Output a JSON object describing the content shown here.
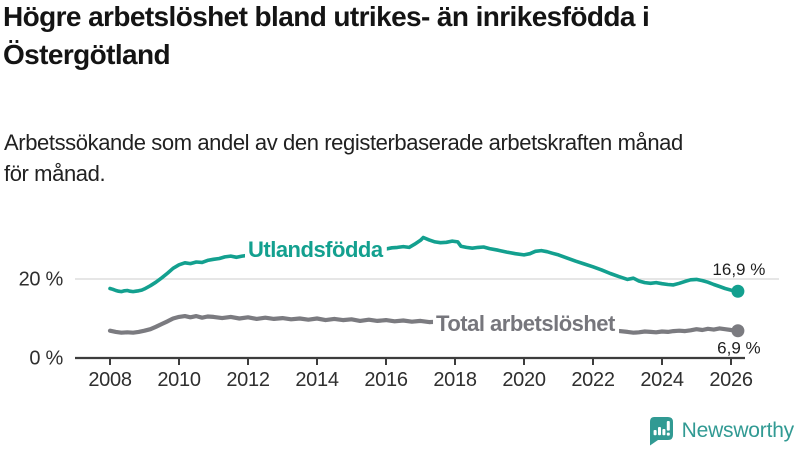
{
  "header": {
    "title_lines": [
      "Högre arbetslöshet bland utrikes- än inrikesfödda i",
      "Östergötland"
    ],
    "subtitle_lines": [
      "Arbetssökande som andel av den registerbaserade arbetskraften månad",
      "för månad."
    ]
  },
  "footer": {
    "brand": "Newsworthy"
  },
  "colors": {
    "accent_teal": "#13a08f",
    "series_gray": "#7b7b80",
    "series_gray_label": "#76767c",
    "grid": "#d8d8d8",
    "axis": "#3d3d3d",
    "axis_text": "#2f2f2f",
    "logo_teal": "#319a93"
  },
  "chart_data": {
    "type": "line",
    "title": "Högre arbetslöshet bland utrikes- än inrikesfödda i Östergötland",
    "subtitle": "Arbetssökande som andel av den registerbaserade arbetskraften månad för månad.",
    "unit": "%",
    "xlim": [
      2008,
      2026.35
    ],
    "ylim": [
      0,
      34
    ],
    "grid": "horizontal-only",
    "legend_position": "inline-labels",
    "x_ticks": [
      2008,
      2010,
      2012,
      2014,
      2016,
      2018,
      2020,
      2022,
      2024,
      2026
    ],
    "y_gridlines": [
      {
        "value": 20,
        "label": "20 %"
      },
      {
        "value": 0,
        "label": "0 %"
      }
    ],
    "series": [
      {
        "name": "Utlandsfödda",
        "color": "#13a08f",
        "end_value": 16.9,
        "end_label": "16,9 %",
        "end_label_position": "above",
        "inline_label": {
          "text": "Utlandsfödda",
          "x": 2012.0,
          "baseline_value": 25.6
        },
        "points": [
          [
            2008.0,
            17.6
          ],
          [
            2008.08,
            17.4
          ],
          [
            2008.17,
            17.1
          ],
          [
            2008.25,
            16.9
          ],
          [
            2008.33,
            16.8
          ],
          [
            2008.42,
            17.0
          ],
          [
            2008.5,
            17.1
          ],
          [
            2008.58,
            16.9
          ],
          [
            2008.67,
            16.8
          ],
          [
            2008.75,
            16.9
          ],
          [
            2008.83,
            17.0
          ],
          [
            2008.92,
            17.2
          ],
          [
            2009.0,
            17.5
          ],
          [
            2009.17,
            18.3
          ],
          [
            2009.33,
            19.2
          ],
          [
            2009.5,
            20.3
          ],
          [
            2009.67,
            21.5
          ],
          [
            2009.83,
            22.7
          ],
          [
            2010.0,
            23.6
          ],
          [
            2010.17,
            24.1
          ],
          [
            2010.33,
            23.9
          ],
          [
            2010.5,
            24.3
          ],
          [
            2010.67,
            24.2
          ],
          [
            2010.83,
            24.7
          ],
          [
            2011.0,
            25.0
          ],
          [
            2011.17,
            25.2
          ],
          [
            2011.33,
            25.6
          ],
          [
            2011.5,
            25.8
          ],
          [
            2011.67,
            25.5
          ],
          [
            2011.83,
            25.8
          ],
          [
            2012.0,
            26.0
          ],
          [
            2012.25,
            25.8
          ],
          [
            2012.5,
            26.1
          ],
          [
            2012.75,
            26.0
          ],
          [
            2013.0,
            26.3
          ],
          [
            2013.25,
            26.1
          ],
          [
            2013.5,
            26.4
          ],
          [
            2013.75,
            26.3
          ],
          [
            2014.0,
            26.6
          ],
          [
            2014.25,
            26.4
          ],
          [
            2014.5,
            26.7
          ],
          [
            2014.75,
            26.6
          ],
          [
            2015.0,
            26.9
          ],
          [
            2015.25,
            26.8
          ],
          [
            2015.5,
            27.1
          ],
          [
            2015.75,
            27.3
          ],
          [
            2016.0,
            27.6
          ],
          [
            2016.17,
            27.9
          ],
          [
            2016.33,
            28.0
          ],
          [
            2016.5,
            28.2
          ],
          [
            2016.67,
            28.0
          ],
          [
            2016.83,
            28.8
          ],
          [
            2017.0,
            29.8
          ],
          [
            2017.08,
            30.5
          ],
          [
            2017.25,
            29.9
          ],
          [
            2017.42,
            29.4
          ],
          [
            2017.58,
            29.2
          ],
          [
            2017.75,
            29.3
          ],
          [
            2017.92,
            29.6
          ],
          [
            2018.08,
            29.4
          ],
          [
            2018.17,
            28.3
          ],
          [
            2018.33,
            28.0
          ],
          [
            2018.5,
            27.8
          ],
          [
            2018.67,
            28.0
          ],
          [
            2018.83,
            28.1
          ],
          [
            2019.0,
            27.7
          ],
          [
            2019.25,
            27.3
          ],
          [
            2019.5,
            26.8
          ],
          [
            2019.75,
            26.4
          ],
          [
            2020.0,
            26.1
          ],
          [
            2020.17,
            26.4
          ],
          [
            2020.33,
            27.0
          ],
          [
            2020.5,
            27.2
          ],
          [
            2020.67,
            26.9
          ],
          [
            2020.83,
            26.5
          ],
          [
            2021.0,
            26.1
          ],
          [
            2021.25,
            25.3
          ],
          [
            2021.5,
            24.5
          ],
          [
            2021.75,
            23.8
          ],
          [
            2022.0,
            23.1
          ],
          [
            2022.25,
            22.3
          ],
          [
            2022.5,
            21.4
          ],
          [
            2022.75,
            20.6
          ],
          [
            2023.0,
            19.9
          ],
          [
            2023.17,
            20.2
          ],
          [
            2023.33,
            19.5
          ],
          [
            2023.5,
            19.1
          ],
          [
            2023.67,
            18.9
          ],
          [
            2023.83,
            19.1
          ],
          [
            2024.0,
            18.8
          ],
          [
            2024.17,
            18.6
          ],
          [
            2024.33,
            18.5
          ],
          [
            2024.5,
            18.9
          ],
          [
            2024.67,
            19.4
          ],
          [
            2024.83,
            19.8
          ],
          [
            2025.0,
            19.9
          ],
          [
            2025.17,
            19.6
          ],
          [
            2025.33,
            19.2
          ],
          [
            2025.5,
            18.6
          ],
          [
            2025.67,
            18.1
          ],
          [
            2025.83,
            17.6
          ],
          [
            2026.0,
            17.2
          ],
          [
            2026.2,
            16.9
          ]
        ]
      },
      {
        "name": "Total arbetslöshet",
        "color": "#7b7b80",
        "label_color": "#76767c",
        "end_value": 6.9,
        "end_label": "6,9 %",
        "end_label_position": "below",
        "inline_label": {
          "text": "Total arbetslöshet",
          "x": 2017.45,
          "baseline_value": 6.85
        },
        "points": [
          [
            2008.0,
            6.9
          ],
          [
            2008.17,
            6.6
          ],
          [
            2008.33,
            6.4
          ],
          [
            2008.5,
            6.5
          ],
          [
            2008.67,
            6.4
          ],
          [
            2008.83,
            6.6
          ],
          [
            2009.0,
            6.9
          ],
          [
            2009.17,
            7.3
          ],
          [
            2009.33,
            7.9
          ],
          [
            2009.5,
            8.6
          ],
          [
            2009.67,
            9.3
          ],
          [
            2009.83,
            10.0
          ],
          [
            2010.0,
            10.4
          ],
          [
            2010.17,
            10.6
          ],
          [
            2010.33,
            10.3
          ],
          [
            2010.5,
            10.6
          ],
          [
            2010.67,
            10.2
          ],
          [
            2010.83,
            10.5
          ],
          [
            2011.0,
            10.4
          ],
          [
            2011.25,
            10.1
          ],
          [
            2011.5,
            10.4
          ],
          [
            2011.75,
            10.0
          ],
          [
            2012.0,
            10.3
          ],
          [
            2012.25,
            9.9
          ],
          [
            2012.5,
            10.2
          ],
          [
            2012.75,
            9.9
          ],
          [
            2013.0,
            10.1
          ],
          [
            2013.25,
            9.8
          ],
          [
            2013.5,
            10.0
          ],
          [
            2013.75,
            9.7
          ],
          [
            2014.0,
            10.0
          ],
          [
            2014.25,
            9.6
          ],
          [
            2014.5,
            9.9
          ],
          [
            2014.75,
            9.6
          ],
          [
            2015.0,
            9.8
          ],
          [
            2015.25,
            9.4
          ],
          [
            2015.5,
            9.7
          ],
          [
            2015.75,
            9.4
          ],
          [
            2016.0,
            9.6
          ],
          [
            2016.25,
            9.3
          ],
          [
            2016.5,
            9.5
          ],
          [
            2016.75,
            9.2
          ],
          [
            2017.0,
            9.4
          ],
          [
            2017.25,
            9.1
          ],
          [
            2017.5,
            9.2
          ],
          [
            2017.75,
            9.0
          ],
          [
            2018.0,
            8.9
          ],
          [
            2018.33,
            8.7
          ],
          [
            2018.67,
            8.5
          ],
          [
            2019.0,
            8.5
          ],
          [
            2019.33,
            8.3
          ],
          [
            2019.67,
            8.3
          ],
          [
            2020.0,
            8.6
          ],
          [
            2020.25,
            9.3
          ],
          [
            2020.5,
            9.5
          ],
          [
            2020.75,
            9.3
          ],
          [
            2021.0,
            9.0
          ],
          [
            2021.33,
            8.5
          ],
          [
            2021.67,
            8.1
          ],
          [
            2022.0,
            7.7
          ],
          [
            2022.33,
            7.2
          ],
          [
            2022.67,
            6.9
          ],
          [
            2023.0,
            6.6
          ],
          [
            2023.17,
            6.4
          ],
          [
            2023.33,
            6.5
          ],
          [
            2023.5,
            6.7
          ],
          [
            2023.67,
            6.6
          ],
          [
            2023.83,
            6.5
          ],
          [
            2024.0,
            6.7
          ],
          [
            2024.17,
            6.6
          ],
          [
            2024.33,
            6.8
          ],
          [
            2024.5,
            6.9
          ],
          [
            2024.67,
            6.8
          ],
          [
            2024.83,
            7.0
          ],
          [
            2025.0,
            7.3
          ],
          [
            2025.17,
            7.1
          ],
          [
            2025.33,
            7.4
          ],
          [
            2025.5,
            7.2
          ],
          [
            2025.67,
            7.5
          ],
          [
            2025.83,
            7.3
          ],
          [
            2026.0,
            7.1
          ],
          [
            2026.2,
            6.9
          ]
        ]
      }
    ]
  }
}
